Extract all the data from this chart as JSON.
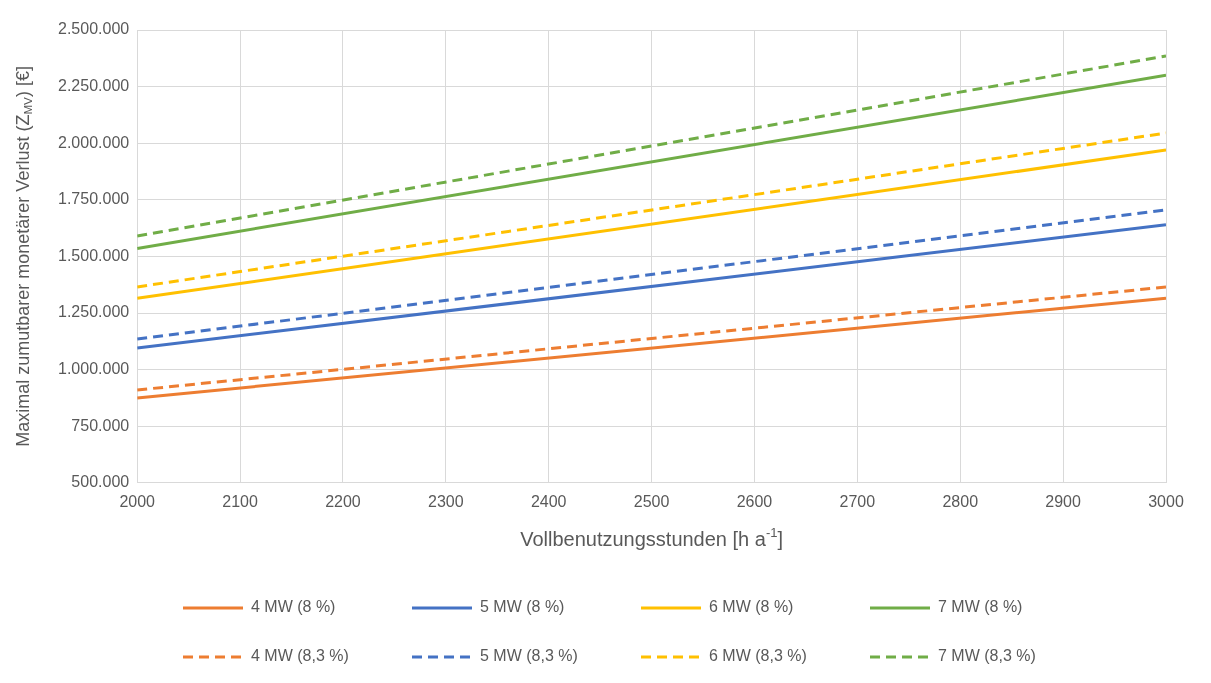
{
  "chart_data": {
    "type": "line",
    "xlabel": "Vollbenutzungsstunden [h a$^{-1}$]",
    "ylabel": "Maximal zumutbarer monetärer Verlust (Z$_{MV}$) [€]",
    "x": [
      2000,
      3000
    ],
    "series": [
      {
        "name": "4 MW (8 %)",
        "color": "#ed7d31",
        "line_style": "solid",
        "values": [
          875000,
          1315000
        ]
      },
      {
        "name": "5 MW (8 %)",
        "color": "#4472c4",
        "line_style": "solid",
        "values": [
          1095000,
          1640000
        ]
      },
      {
        "name": "6 MW (8 %)",
        "color": "#ffc000",
        "line_style": "solid",
        "values": [
          1315000,
          1970000
        ]
      },
      {
        "name": "7 MW (8 %)",
        "color": "#70ad47",
        "line_style": "solid",
        "values": [
          1535000,
          2300000
        ]
      },
      {
        "name": "4 MW (8,3 %)",
        "color": "#ed7d31",
        "line_style": "dashed",
        "values": [
          910000,
          1365000
        ]
      },
      {
        "name": "5 MW (8,3 %)",
        "color": "#4472c4",
        "line_style": "dashed",
        "values": [
          1135000,
          1705000
        ]
      },
      {
        "name": "6 MW (8,3 %)",
        "color": "#ffc000",
        "line_style": "dashed",
        "values": [
          1365000,
          2045000
        ]
      },
      {
        "name": "7 MW (8,3 %)",
        "color": "#70ad47",
        "line_style": "dashed",
        "values": [
          1590000,
          2385000
        ]
      }
    ],
    "xlim": [
      2000,
      3000
    ],
    "xticks": [
      2000,
      2100,
      2200,
      2300,
      2400,
      2500,
      2600,
      2700,
      2800,
      2900,
      3000
    ],
    "ylim": [
      500000,
      2500000
    ],
    "yticks": [
      {
        "value": 500000,
        "label": "500.000"
      },
      {
        "value": 750000,
        "label": "750.000"
      },
      {
        "value": 1000000,
        "label": "1.000.000"
      },
      {
        "value": 1250000,
        "label": "1.250.000"
      },
      {
        "value": 1500000,
        "label": "1.500.000"
      },
      {
        "value": 1750000,
        "label": "1.750.000"
      },
      {
        "value": 2000000,
        "label": "2.000.000"
      },
      {
        "value": 2250000,
        "label": "2.250.000"
      },
      {
        "value": 2500000,
        "label": "2.500.000"
      }
    ],
    "grid": true,
    "legend": "bottom",
    "marker": "none"
  }
}
